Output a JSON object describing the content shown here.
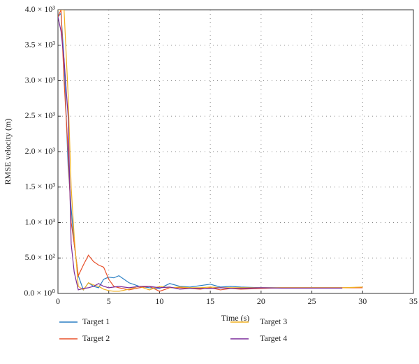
{
  "chart_data": {
    "type": "line",
    "xlabel": "Time (s)",
    "ylabel": "RMSE velocity (m)",
    "x": [
      0,
      0.3,
      0.6,
      1,
      1.3,
      1.6,
      2,
      2.5,
      3,
      3.5,
      4,
      4.5,
      5,
      5.5,
      6,
      7,
      8,
      9,
      10,
      11,
      12,
      13,
      14,
      15,
      16,
      17,
      18,
      20,
      22,
      24,
      26,
      28,
      30
    ],
    "series": [
      {
        "name": "Target 1",
        "color": "#2a7fc4",
        "values": [
          3900,
          3950,
          3300,
          1800,
          1200,
          700,
          250,
          50,
          150,
          100,
          80,
          200,
          230,
          220,
          250,
          150,
          100,
          80,
          70,
          140,
          100,
          90,
          110,
          130,
          90,
          100,
          90,
          80,
          80,
          80,
          80,
          80,
          null
        ]
      },
      {
        "name": "Target 2",
        "color": "#e8502a",
        "values": [
          3900,
          4000,
          3000,
          2000,
          1000,
          700,
          250,
          400,
          540,
          450,
          400,
          370,
          200,
          100,
          80,
          50,
          80,
          100,
          30,
          80,
          80,
          70,
          60,
          80,
          50,
          70,
          60,
          70,
          80,
          80,
          80,
          80,
          80
        ]
      },
      {
        "name": "Target 3",
        "color": "#f0b020",
        "values": [
          4000,
          4000,
          4000,
          2800,
          1500,
          800,
          100,
          50,
          150,
          120,
          100,
          60,
          40,
          30,
          30,
          60,
          100,
          50,
          100,
          80,
          90,
          80,
          80,
          90,
          80,
          80,
          80,
          80,
          80,
          80,
          80,
          80,
          90
        ]
      },
      {
        "name": "Target 4",
        "color": "#7a2a9a",
        "values": [
          3900,
          3700,
          3300,
          2500,
          700,
          300,
          50,
          70,
          80,
          100,
          140,
          100,
          80,
          90,
          100,
          80,
          100,
          100,
          80,
          90,
          60,
          70,
          70,
          70,
          80,
          70,
          70,
          80,
          75,
          75,
          75,
          75,
          null
        ]
      }
    ],
    "xlim": [
      0,
      35
    ],
    "xticks": [
      0,
      5,
      10,
      15,
      20,
      25,
      30,
      35
    ],
    "ylim": [
      0,
      4000
    ],
    "yticks": [
      {
        "value": 0,
        "label": "0.0 × 10⁰"
      },
      {
        "value": 500,
        "label": "5.0 × 10²"
      },
      {
        "value": 1000,
        "label": "1.0 × 10³"
      },
      {
        "value": 1500,
        "label": "1.5 × 10³"
      },
      {
        "value": 2000,
        "label": "2.0 × 10³"
      },
      {
        "value": 2500,
        "label": "2.5 × 10³"
      },
      {
        "value": 3000,
        "label": "3.0 × 10³"
      },
      {
        "value": 3500,
        "label": "3.5 × 10³"
      },
      {
        "value": 4000,
        "label": "4.0 × 10³"
      }
    ],
    "grid": true
  }
}
